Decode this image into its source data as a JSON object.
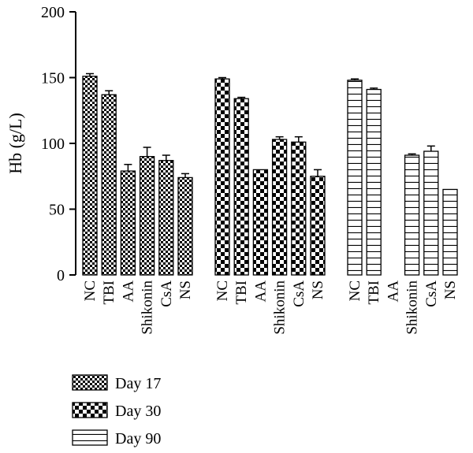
{
  "chart_data": {
    "type": "bar",
    "ylabel": "Hb (g/L)",
    "xlabel": "",
    "ylim": [
      0,
      200
    ],
    "yticks": [
      0,
      50,
      100,
      150,
      200
    ],
    "grid": false,
    "legend_position": "bottom-left",
    "categories": [
      "NC",
      "TBI",
      "AA",
      "Shikonin",
      "CsA",
      "NS"
    ],
    "series": [
      {
        "name": "Day 17",
        "pattern": "fine-checker",
        "values": [
          151,
          137,
          79,
          90,
          87,
          74
        ],
        "errors": [
          2,
          3,
          5,
          7,
          4,
          3
        ]
      },
      {
        "name": "Day 30",
        "pattern": "coarse-checker",
        "values": [
          149,
          134,
          80,
          103,
          101,
          75
        ],
        "errors": [
          1,
          1,
          0,
          2,
          4,
          5
        ]
      },
      {
        "name": "Day 90",
        "pattern": "horizontal-lines",
        "values": [
          148,
          141,
          null,
          91,
          94,
          65
        ],
        "errors": [
          1,
          1,
          null,
          1,
          4,
          0
        ]
      }
    ],
    "colors": {
      "bar_stroke": "#000000",
      "pattern_dark": "#000000",
      "background": "#ffffff"
    }
  }
}
